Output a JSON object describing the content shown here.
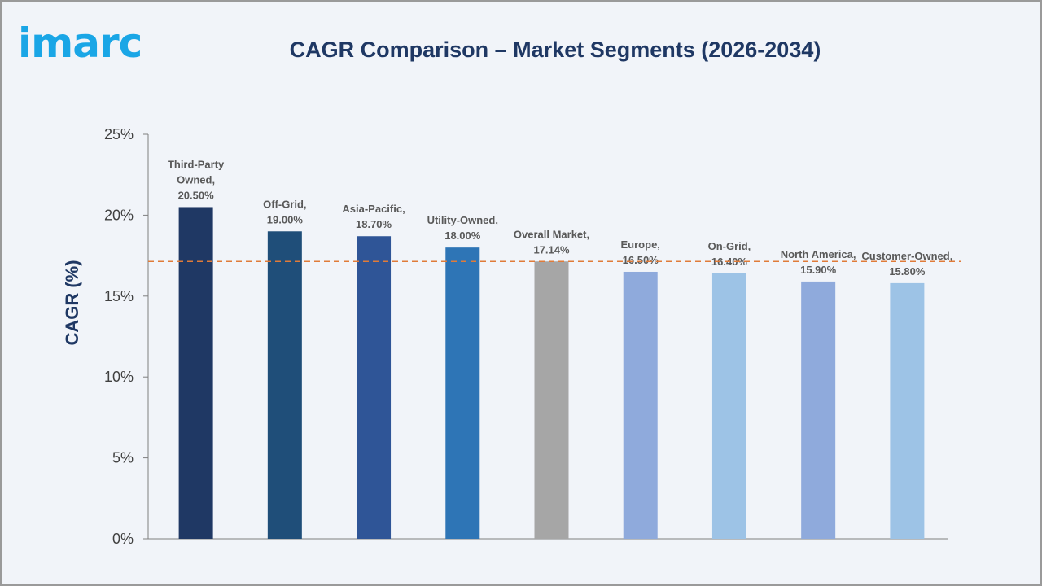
{
  "logo": "imarc",
  "chart_data": {
    "type": "bar",
    "title": "CAGR Comparison – Market Segments (2026-2034)",
    "xlabel": "",
    "ylabel": "CAGR (%)",
    "ylim": [
      0,
      25
    ],
    "yticks": [
      "0%",
      "5%",
      "10%",
      "15%",
      "20%",
      "25%"
    ],
    "ytick_values": [
      0,
      5,
      10,
      15,
      20,
      25
    ],
    "categories": [
      "Third-Party Owned",
      "Off-Grid",
      "Asia-Pacific",
      "Utility-Owned",
      "Overall Market",
      "Europe",
      "On-Grid",
      "North America",
      "Customer-Owned"
    ],
    "values": [
      20.5,
      19.0,
      18.7,
      18.0,
      17.14,
      16.5,
      16.4,
      15.9,
      15.8
    ],
    "data_labels": [
      [
        "Third-Party",
        "Owned,",
        "20.50%"
      ],
      [
        "Off-Grid,",
        "19.00%"
      ],
      [
        "Asia-Pacific,",
        "18.70%"
      ],
      [
        "Utility-Owned,",
        "18.00%"
      ],
      [
        "Overall Market,",
        "17.14%"
      ],
      [
        "Europe,",
        "16.50%"
      ],
      [
        "On-Grid,",
        "16.40%"
      ],
      [
        "North America,",
        "15.90%"
      ],
      [
        "Customer-Owned,",
        "15.80%"
      ]
    ],
    "colors": [
      "#1f3864",
      "#1f4e79",
      "#2f5597",
      "#2e75b6",
      "#a6a6a6",
      "#8faadc",
      "#9dc3e6",
      "#8faadc",
      "#9dc3e6"
    ],
    "reference_line": {
      "value": 17.14,
      "color": "#e07b39",
      "style": "dashed"
    },
    "grid": false,
    "legend": "none"
  }
}
